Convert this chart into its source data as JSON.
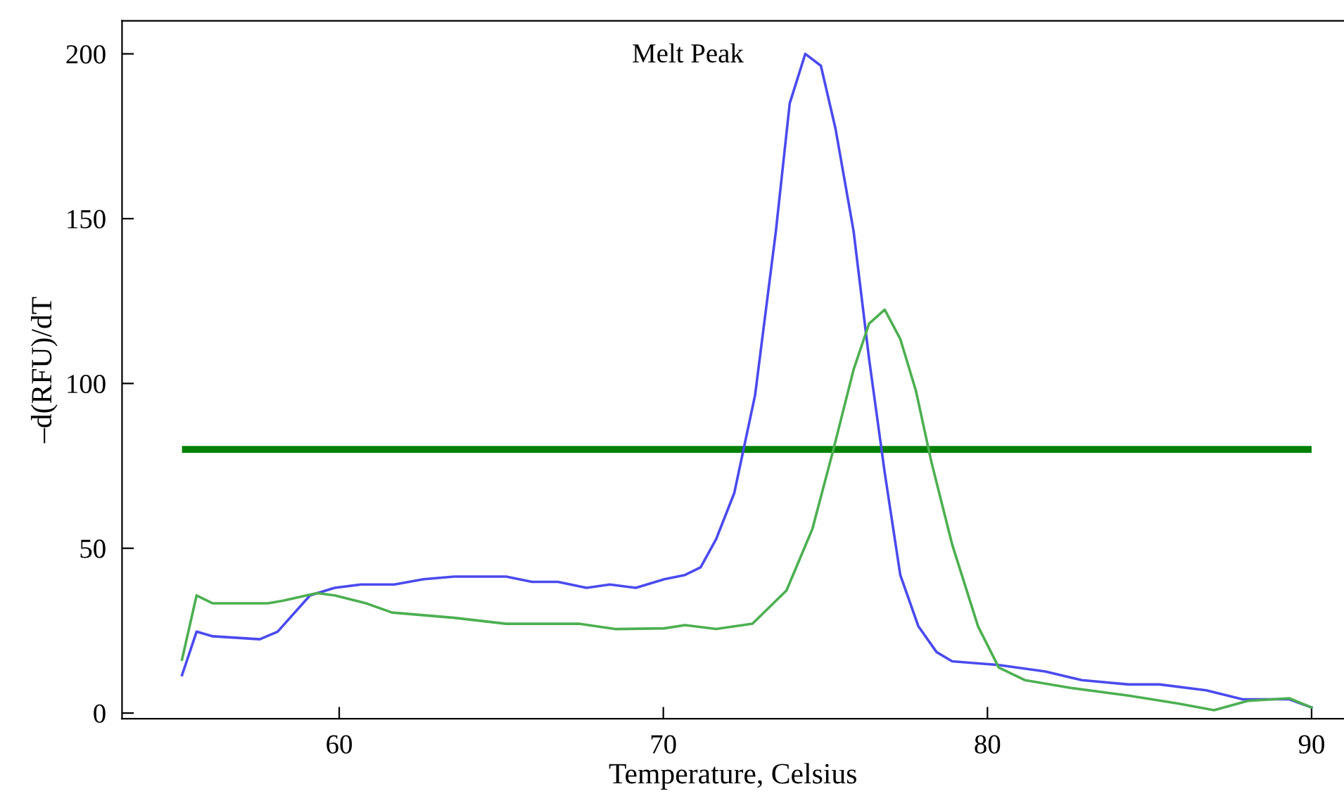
{
  "chart_data": {
    "type": "line",
    "title": "Melt Peak",
    "xlabel": "Temperature, Celsius",
    "ylabel": "–d(RFU)/dT",
    "xlim": [
      53.3,
      91
    ],
    "ylim": [
      -1.7,
      210
    ],
    "xticks": [
      60,
      70,
      80,
      90
    ],
    "yticks": [
      0,
      50,
      100,
      150,
      200
    ],
    "grid": false,
    "legend": false,
    "ref_lines": [
      {
        "axis": "y",
        "value": 80,
        "color": "#008000",
        "line_style": "solid"
      }
    ],
    "series": [
      {
        "color": "#4a4aee",
        "x": [
          55.15,
          55.6,
          56.1,
          57.55,
          58.1,
          59.1,
          59.86,
          60.67,
          61.7,
          62.6,
          63.55,
          65.15,
          65.95,
          66.75,
          67.63,
          68.35,
          69.15,
          70.03,
          70.67,
          71.15,
          71.63,
          72.19,
          72.83,
          73.47,
          73.9,
          74.38,
          74.86,
          75.31,
          75.87,
          76.35,
          76.83,
          77.31,
          77.87,
          78.43,
          78.91,
          80.35,
          81.79,
          82.91,
          84.35,
          85.31,
          86.75,
          87.87,
          89.31,
          90.0
        ],
        "values": [
          11.5,
          24.7,
          23.3,
          22.4,
          24.7,
          35.7,
          38,
          39,
          39,
          40.6,
          41.4,
          41.4,
          39.8,
          39.8,
          38,
          39,
          38,
          40.6,
          41.9,
          44.2,
          52.8,
          66.8,
          96.4,
          146,
          185,
          200,
          196.4,
          177.4,
          146.2,
          107.3,
          73,
          41.9,
          26.3,
          18.5,
          15.7,
          14.6,
          12.6,
          10,
          8.7,
          8.7,
          6.9,
          4.2,
          4.2,
          1.7
        ]
      },
      {
        "color": "#4caf50",
        "x": [
          55.15,
          55.6,
          56.1,
          57.8,
          58.27,
          59.31,
          59.86,
          60.83,
          61.63,
          63.55,
          65.15,
          67.39,
          68.51,
          70.03,
          70.67,
          71.63,
          72.75,
          73.8,
          74.6,
          75.23,
          75.87,
          76.35,
          76.83,
          77.31,
          77.79,
          78.27,
          78.91,
          79.71,
          80.35,
          81.15,
          82.59,
          84.35,
          85.88,
          86.99,
          88.03,
          89.31,
          90.0
        ],
        "values": [
          16.2,
          35.7,
          33.3,
          33.3,
          34.1,
          36.4,
          35.7,
          33.3,
          30.5,
          28.9,
          27.1,
          27.1,
          25.5,
          25.7,
          26.7,
          25.5,
          27.1,
          37.2,
          55.9,
          79.3,
          104.2,
          118.2,
          122.4,
          113.5,
          97.9,
          76.2,
          51.2,
          26.3,
          13.8,
          10,
          7.6,
          5.3,
          2.9,
          0.9,
          3.7,
          4.5,
          1.7
        ]
      }
    ]
  }
}
